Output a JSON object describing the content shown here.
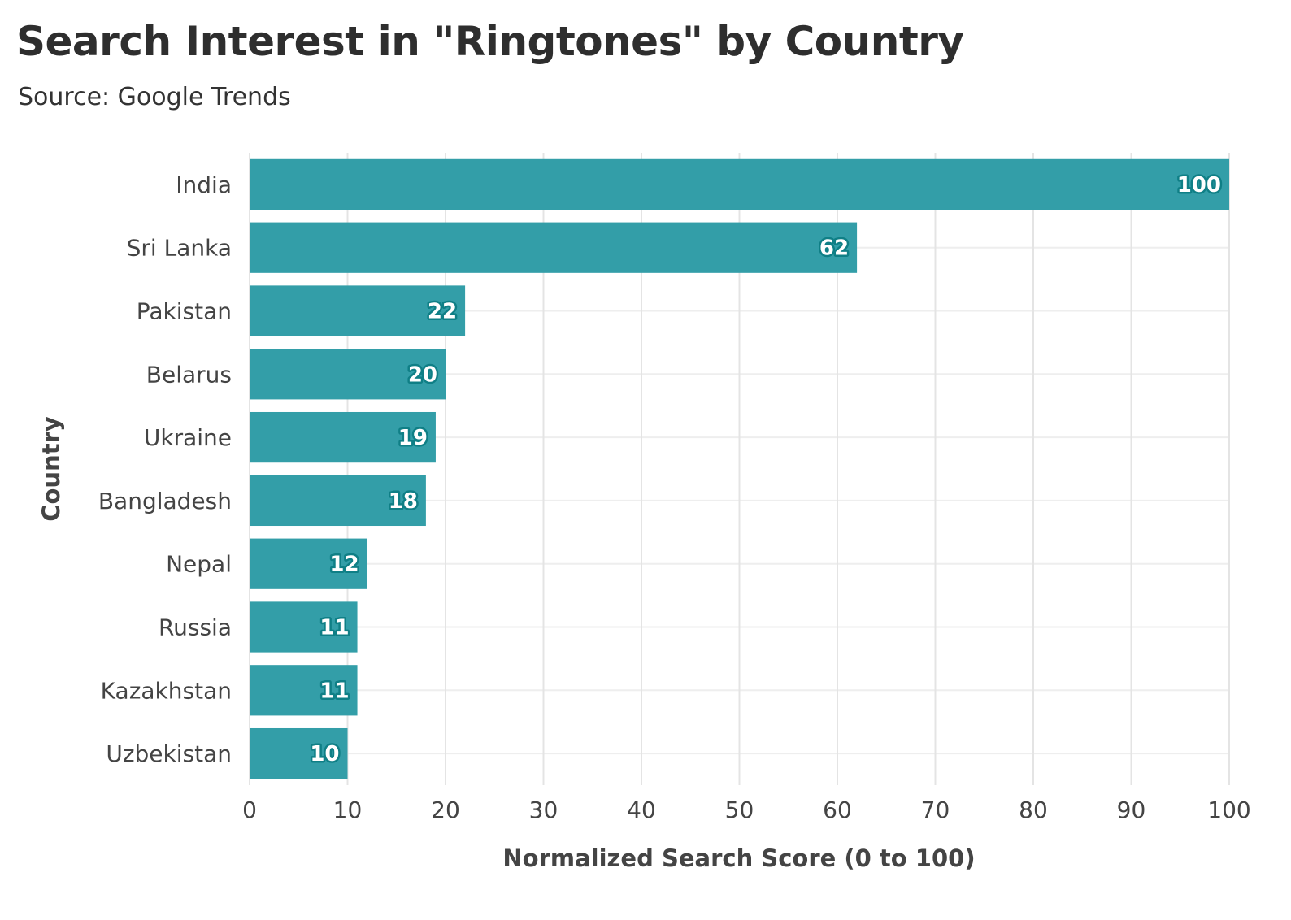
{
  "chart_data": {
    "type": "bar",
    "orientation": "horizontal",
    "title": "Search Interest in \"Ringtones\" by Country",
    "subtitle": "Source: Google Trends",
    "xlabel": "Normalized Search Score (0 to 100)",
    "ylabel": "Country",
    "categories": [
      "India",
      "Sri Lanka",
      "Pakistan",
      "Belarus",
      "Ukraine",
      "Bangladesh",
      "Nepal",
      "Russia",
      "Kazakhstan",
      "Uzbekistan"
    ],
    "values": [
      100,
      62,
      22,
      20,
      19,
      18,
      12,
      11,
      11,
      10
    ],
    "xlim": [
      0,
      100
    ],
    "xticks": [
      0,
      10,
      20,
      30,
      40,
      50,
      60,
      70,
      80,
      90,
      100
    ],
    "grid": true,
    "data_labels": true,
    "bar_color": "#339ea8",
    "label_outline_color": "#0f7f86"
  }
}
